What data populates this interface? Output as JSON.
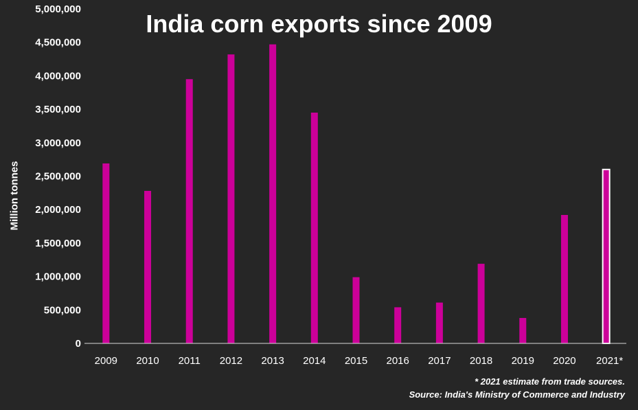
{
  "chart_data": {
    "type": "bar",
    "title": "India corn exports since 2009",
    "ylabel": "Million tonnes",
    "xlabel": "",
    "categories": [
      "2009",
      "2010",
      "2011",
      "2012",
      "2013",
      "2014",
      "2015",
      "2016",
      "2017",
      "2018",
      "2019",
      "2020",
      "2021*"
    ],
    "values": [
      2690000,
      2280000,
      3950000,
      4320000,
      4470000,
      3450000,
      990000,
      540000,
      610000,
      1190000,
      380000,
      1920000,
      2600000
    ],
    "estimated": [
      false,
      false,
      false,
      false,
      false,
      false,
      false,
      false,
      false,
      false,
      false,
      false,
      true
    ],
    "ylim": [
      0,
      5000000
    ],
    "yticks": [
      0,
      500000,
      1000000,
      1500000,
      2000000,
      2500000,
      3000000,
      3500000,
      4000000,
      4500000,
      5000000
    ],
    "ytick_labels": [
      "0",
      "500,000",
      "1,000,000",
      "1,500,000",
      "2,000,000",
      "2,500,000",
      "3,000,000",
      "3,500,000",
      "4,000,000",
      "4,500,000",
      "5,000,000"
    ],
    "grid": false,
    "legend": "none",
    "colors": {
      "bar": "#cc0099",
      "estimate_outline": "#ffffff",
      "background": "#262626",
      "text": "#ffffff"
    }
  },
  "notes": {
    "estimate": "* 2021  estimate from trade sources.",
    "source": "Source: India's Ministry of Commerce and Industry"
  }
}
